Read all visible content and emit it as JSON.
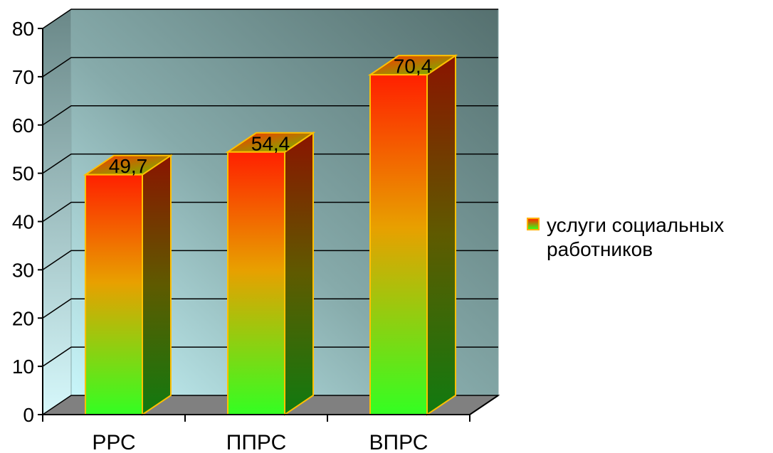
{
  "chart_data": {
    "type": "bar",
    "categories": [
      "РРС",
      "ППРС",
      "ВПРС"
    ],
    "series": [
      {
        "name": "услуги социальных работников",
        "values": [
          49.7,
          54.4,
          70.4
        ]
      }
    ],
    "data_labels": [
      "49,7",
      "54,4",
      "70,4"
    ],
    "ylim": [
      0,
      80
    ],
    "yticks": [
      0,
      10,
      20,
      30,
      40,
      50,
      60,
      70,
      80
    ],
    "title": "",
    "xlabel": "",
    "ylabel": "",
    "grid": true,
    "legend_position": "right",
    "colors": {
      "bar_top": "#ff2a00",
      "bar_bottom": "#39ff14",
      "bar_outline": "#ffc000",
      "wall_light": "#c8f4f8",
      "wall_dark": "#5f7c7c",
      "floor": "#808080"
    }
  },
  "legend": {
    "label": "услуги социальных работников"
  }
}
